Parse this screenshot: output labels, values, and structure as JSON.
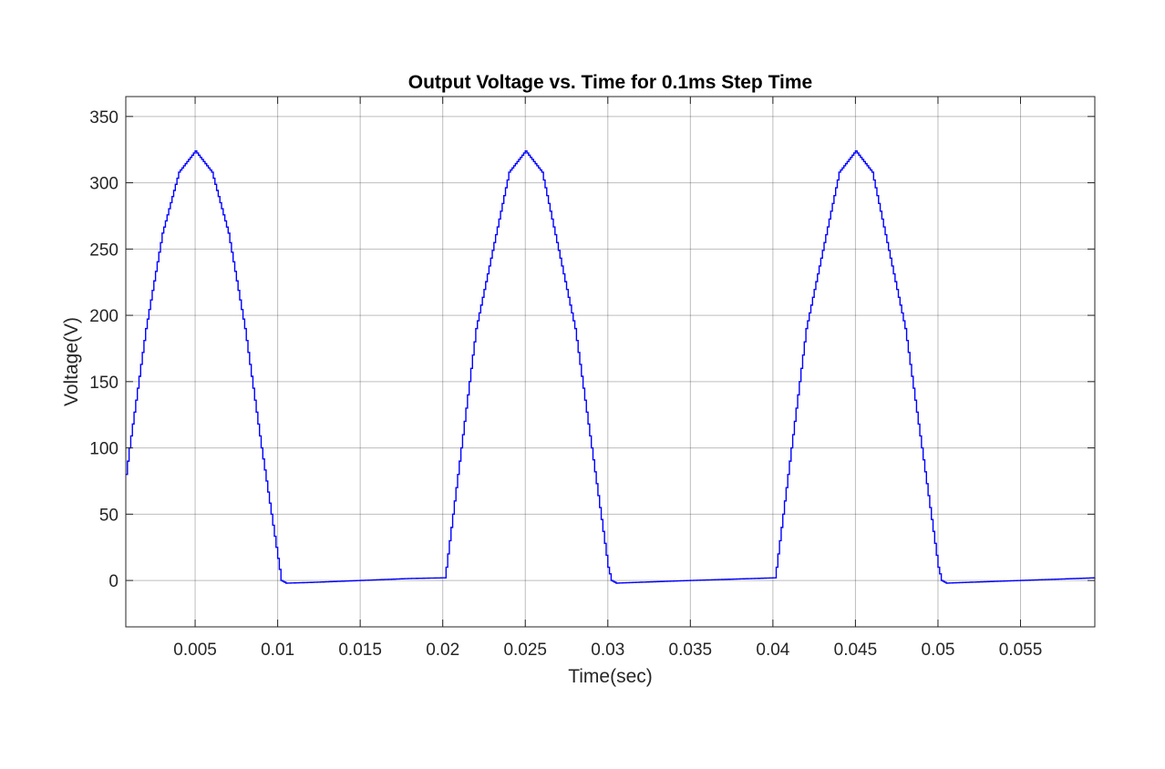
{
  "chart_data": {
    "type": "line",
    "title": "Output Voltage vs. Time for 0.1ms Step Time",
    "xlabel": "Time(sec)",
    "ylabel": "Voltage(V)",
    "xlim": [
      0.0008,
      0.0595
    ],
    "ylim": [
      -35,
      365
    ],
    "xticks": [
      0.005,
      0.01,
      0.015,
      0.02,
      0.025,
      0.03,
      0.035,
      0.04,
      0.045,
      0.05,
      0.055
    ],
    "xtick_labels": [
      "0.005",
      "0.01",
      "0.015",
      "0.02",
      "0.025",
      "0.03",
      "0.035",
      "0.04",
      "0.045",
      "0.05",
      "0.055"
    ],
    "yticks": [
      0,
      50,
      100,
      150,
      200,
      250,
      300,
      350
    ],
    "ytick_labels": [
      "0",
      "50",
      "100",
      "150",
      "200",
      "250",
      "300",
      "350"
    ],
    "grid": true,
    "series": [
      {
        "color": "#0000ff",
        "step_time": 0.0001,
        "x": [
          0.0008,
          0.001,
          0.002,
          0.003,
          0.004,
          0.005,
          0.006,
          0.007,
          0.008,
          0.009,
          0.0102,
          0.0105,
          0.012,
          0.015,
          0.018,
          0.0201,
          0.0202,
          0.022,
          0.024,
          0.025,
          0.026,
          0.028,
          0.03,
          0.0302,
          0.0305,
          0.035,
          0.0401,
          0.0402,
          0.042,
          0.044,
          0.045,
          0.046,
          0.048,
          0.05,
          0.0502,
          0.0505,
          0.055,
          0.0595
        ],
        "y": [
          80,
          100,
          190,
          262,
          308,
          324,
          308,
          262,
          190,
          100,
          0,
          -2,
          -1.5,
          0,
          1.5,
          2,
          10,
          190,
          308,
          324,
          308,
          190,
          10,
          0,
          -2,
          0,
          2,
          10,
          190,
          308,
          324,
          308,
          190,
          10,
          0,
          -2,
          0,
          2
        ]
      }
    ]
  }
}
